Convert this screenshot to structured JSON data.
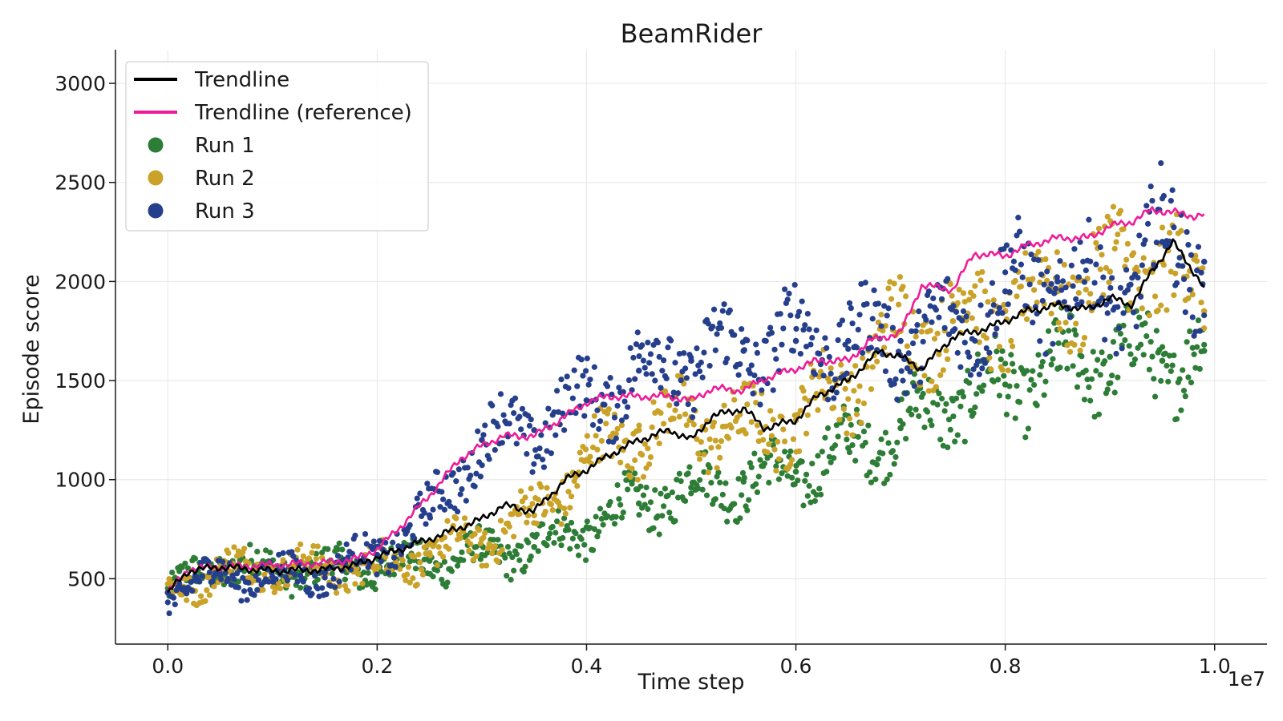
{
  "chart_data": {
    "type": "scatter",
    "title": "BeamRider",
    "xlabel": "Time step",
    "ylabel": "Episode score",
    "x_offset_label": "1e7",
    "xlim": [
      -0.05,
      1.05
    ],
    "ylim": [
      170,
      3170
    ],
    "x_ticks": [
      0.0,
      0.2,
      0.4,
      0.6,
      0.8,
      1.0
    ],
    "x_tick_labels": [
      "0.0",
      "0.2",
      "0.4",
      "0.6",
      "0.8",
      "1.0"
    ],
    "y_ticks": [
      500,
      1000,
      1500,
      2000,
      2500,
      3000
    ],
    "y_tick_labels": [
      "500",
      "1000",
      "1500",
      "2000",
      "2500",
      "3000"
    ],
    "grid": true,
    "legend_position": "top-left",
    "legend": [
      "Trendline",
      "Trendline (reference)",
      "Run 1",
      "Run 2",
      "Run 3"
    ],
    "colors": {
      "trendline": "#000000",
      "reference": "#ee1c99",
      "run1": "#2e7d36",
      "run2": "#c9a227",
      "run3": "#253f8c"
    },
    "series": [
      {
        "name": "Trendline",
        "kind": "line",
        "x": [
          0.0,
          0.02,
          0.05,
          0.1,
          0.15,
          0.18,
          0.2,
          0.25,
          0.3,
          0.32,
          0.35,
          0.38,
          0.4,
          0.42,
          0.45,
          0.48,
          0.5,
          0.52,
          0.55,
          0.57,
          0.6,
          0.62,
          0.65,
          0.68,
          0.7,
          0.72,
          0.75,
          0.78,
          0.8,
          0.82,
          0.85,
          0.88,
          0.9,
          0.92,
          0.94,
          0.96,
          0.98,
          0.99
        ],
        "y": [
          430,
          540,
          560,
          540,
          545,
          570,
          610,
          700,
          800,
          870,
          840,
          1000,
          1050,
          1120,
          1200,
          1250,
          1200,
          1320,
          1360,
          1260,
          1300,
          1420,
          1500,
          1650,
          1620,
          1560,
          1720,
          1760,
          1800,
          1850,
          1880,
          1860,
          1920,
          1880,
          2050,
          2200,
          2050,
          1970
        ]
      },
      {
        "name": "Trendline (reference)",
        "kind": "line",
        "x": [
          0.0,
          0.02,
          0.05,
          0.1,
          0.15,
          0.18,
          0.2,
          0.22,
          0.25,
          0.28,
          0.3,
          0.32,
          0.35,
          0.38,
          0.4,
          0.42,
          0.45,
          0.48,
          0.5,
          0.52,
          0.55,
          0.57,
          0.6,
          0.62,
          0.65,
          0.67,
          0.7,
          0.72,
          0.75,
          0.77,
          0.8,
          0.82,
          0.85,
          0.88,
          0.9,
          0.92,
          0.94,
          0.96,
          0.98,
          0.99
        ],
        "y": [
          430,
          550,
          560,
          570,
          580,
          600,
          650,
          750,
          920,
          1110,
          1170,
          1220,
          1220,
          1320,
          1390,
          1420,
          1420,
          1420,
          1400,
          1460,
          1450,
          1510,
          1560,
          1600,
          1600,
          1700,
          1740,
          1980,
          1960,
          2140,
          2130,
          2180,
          2220,
          2220,
          2280,
          2300,
          2360,
          2350,
          2330,
          2340
        ]
      },
      {
        "name": "Run 1",
        "kind": "scatter",
        "x": [
          0.0,
          0.05,
          0.1,
          0.15,
          0.2,
          0.25,
          0.3,
          0.35,
          0.4,
          0.45,
          0.5,
          0.55,
          0.6,
          0.65,
          0.7,
          0.75,
          0.8,
          0.85,
          0.9,
          0.95,
          0.99
        ],
        "y": [
          430,
          580,
          540,
          545,
          560,
          590,
          620,
          660,
          760,
          880,
          960,
          990,
          1040,
          1160,
          1260,
          1400,
          1480,
          1560,
          1620,
          1600,
          1650
        ]
      },
      {
        "name": "Run 2",
        "kind": "scatter",
        "x": [
          0.0,
          0.05,
          0.1,
          0.15,
          0.2,
          0.25,
          0.3,
          0.35,
          0.4,
          0.45,
          0.5,
          0.55,
          0.6,
          0.65,
          0.7,
          0.75,
          0.8,
          0.85,
          0.9,
          0.95,
          0.99
        ],
        "y": [
          430,
          540,
          560,
          545,
          560,
          630,
          700,
          820,
          1100,
          1250,
          1300,
          1250,
          1300,
          1500,
          1750,
          1800,
          1850,
          1950,
          2050,
          2100,
          1850
        ]
      },
      {
        "name": "Run 3",
        "kind": "scatter",
        "x": [
          0.0,
          0.05,
          0.1,
          0.15,
          0.2,
          0.25,
          0.3,
          0.35,
          0.4,
          0.45,
          0.5,
          0.55,
          0.6,
          0.65,
          0.7,
          0.75,
          0.8,
          0.85,
          0.9,
          0.95,
          0.99
        ],
        "y": [
          430,
          520,
          510,
          530,
          620,
          820,
          1200,
          1250,
          1400,
          1550,
          1600,
          1650,
          1700,
          1700,
          1700,
          1750,
          1950,
          2000,
          1900,
          2200,
          2100
        ]
      }
    ]
  }
}
